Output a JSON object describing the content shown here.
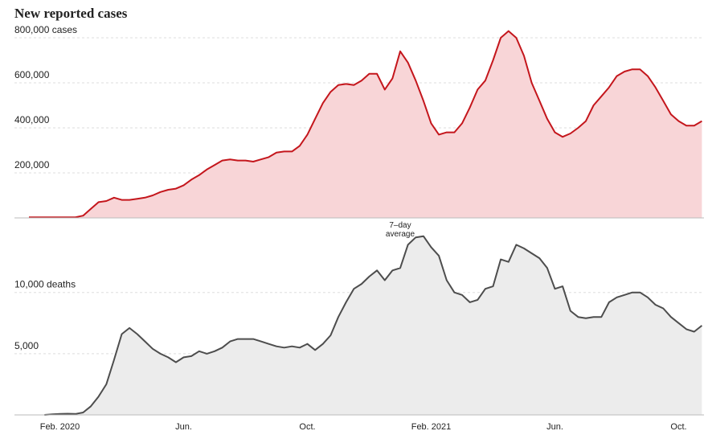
{
  "chart_data": [
    {
      "type": "area",
      "title": "New reported cases",
      "color": "#c4161c",
      "fill_color": "#f8d5d7",
      "values": [
        3000,
        3000,
        3000,
        3000,
        3000,
        3000,
        3000,
        10000,
        40000,
        70000,
        75000,
        90000,
        80000,
        80000,
        85000,
        90000,
        100000,
        115000,
        125000,
        130000,
        145000,
        170000,
        190000,
        215000,
        235000,
        255000,
        260000,
        255000,
        255000,
        250000,
        260000,
        270000,
        290000,
        295000,
        295000,
        320000,
        370000,
        440000,
        510000,
        560000,
        590000,
        595000,
        590000,
        610000,
        640000,
        640000,
        570000,
        620000,
        740000,
        690000,
        610000,
        520000,
        420000,
        370000,
        380000,
        380000,
        420000,
        490000,
        570000,
        610000,
        700000,
        800000,
        830000,
        800000,
        720000,
        600000,
        520000,
        440000,
        380000,
        360000,
        375000,
        400000,
        430000,
        500000,
        540000,
        580000,
        630000,
        650000,
        660000,
        660000,
        630000,
        580000,
        520000,
        460000,
        430000,
        410000,
        410000,
        430000
      ],
      "ylim": [
        0,
        900000
      ],
      "yticks": [
        {
          "value": 200000,
          "label": "200,000"
        },
        {
          "value": 400000,
          "label": "400,000"
        },
        {
          "value": 600000,
          "label": "600,000"
        },
        {
          "value": 800000,
          "label": "800,000 cases"
        }
      ],
      "grid": true
    },
    {
      "type": "area",
      "annotation": "7–day average",
      "color": "#4d4d4d",
      "fill_color": "#ececec",
      "categories": [
        null,
        null,
        null,
        null,
        "Feb. 2020",
        null,
        null,
        null,
        null,
        null,
        null,
        null,
        null,
        null,
        null,
        null,
        null,
        null,
        null,
        null,
        "Jun.",
        null,
        null,
        null,
        null,
        null,
        null,
        null,
        null,
        null,
        null,
        null,
        null,
        null,
        null,
        null,
        "Oct.",
        null,
        null,
        null,
        null,
        null,
        null,
        null,
        null,
        null,
        null,
        null,
        null,
        null,
        null,
        null,
        "Feb. 2021",
        null,
        null,
        null,
        null,
        null,
        null,
        null,
        null,
        null,
        null,
        null,
        null,
        null,
        null,
        null,
        "Jun.",
        null,
        null,
        null,
        null,
        null,
        null,
        null,
        null,
        null,
        null,
        null,
        null,
        null,
        null,
        null,
        "Oct.",
        null,
        null,
        null
      ],
      "values": [
        null,
        null,
        0,
        50,
        80,
        100,
        80,
        200,
        700,
        1500,
        2500,
        4500,
        6600,
        7100,
        6600,
        6000,
        5400,
        5000,
        4700,
        4300,
        4700,
        4800,
        5200,
        5000,
        5200,
        5500,
        6000,
        6200,
        6200,
        6200,
        6000,
        5800,
        5600,
        5500,
        5600,
        5500,
        5800,
        5300,
        5800,
        6500,
        8000,
        9200,
        10300,
        10700,
        11300,
        11800,
        11000,
        11800,
        12000,
        13900,
        14500,
        14600,
        13700,
        13000,
        11000,
        10000,
        9800,
        9200,
        9400,
        10300,
        10500,
        12700,
        12500,
        13900,
        13600,
        13200,
        12800,
        12000,
        10300,
        10500,
        8500,
        8000,
        7900,
        8000,
        8000,
        9200,
        9600,
        9800,
        10000,
        10000,
        9600,
        9000,
        8700,
        8000,
        7500,
        7000,
        6800,
        7300
      ],
      "ylim": [
        0,
        15500
      ],
      "yticks": [
        {
          "value": 5000,
          "label": "5,000"
        },
        {
          "value": 10000,
          "label": "10,000 deaths"
        }
      ],
      "grid": true
    }
  ]
}
